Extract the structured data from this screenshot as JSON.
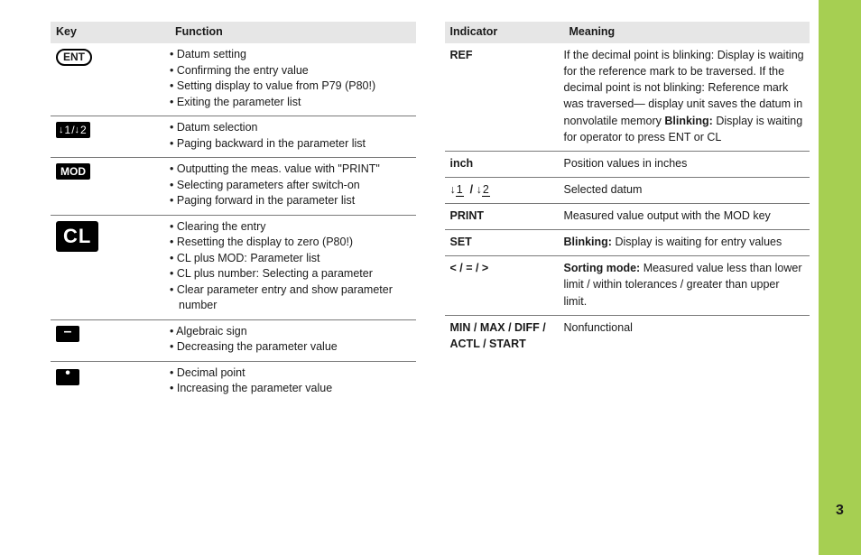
{
  "page_number": "3",
  "left_table": {
    "header": {
      "key": "Key",
      "function": "Function"
    },
    "rows": [
      {
        "key_type": "ent",
        "key_label": "ENT",
        "items": [
          "Datum setting",
          "Confirming the entry value",
          "Setting display to value from P79 (P80!)",
          "Exiting the parameter list"
        ]
      },
      {
        "key_type": "datum12",
        "key_label": "1/2",
        "items": [
          "Datum selection",
          "Paging backward in the parameter list"
        ]
      },
      {
        "key_type": "mod",
        "key_label": "MOD",
        "items": [
          "Outputting the meas. value with \"PRINT\"",
          "Selecting parameters after switch-on",
          "Paging forward in the parameter list"
        ]
      },
      {
        "key_type": "cl",
        "key_label": "CL",
        "items": [
          "Clearing the entry",
          "Resetting the display to zero (P80!)",
          "CL plus MOD: Parameter list",
          "CL plus number: Selecting a parameter",
          "Clear parameter entry and show parameter number"
        ]
      },
      {
        "key_type": "minus",
        "key_label": "–",
        "items": [
          "Algebraic sign",
          "Decreasing the parameter  value"
        ]
      },
      {
        "key_type": "dot",
        "key_label": "•",
        "items": [
          "Decimal point",
          "Increasing the parameter value"
        ]
      }
    ]
  },
  "right_table": {
    "header": {
      "indicator": "Indicator",
      "meaning": "Meaning"
    },
    "rows": [
      {
        "indicator": "REF",
        "meaning_lines": [
          {
            "text": "If the decimal point is blinking:"
          },
          {
            "text": "Display is waiting for the reference mark to be traversed."
          },
          {
            "text": "If the decimal point is not blinking:"
          },
          {
            "text": "Reference mark was traversed—"
          },
          {
            "text": "display unit saves the datum in nonvolatile memory"
          },
          {
            "bold": "Blinking:",
            "text": " Display is waiting for operator to press ENT or CL"
          }
        ]
      },
      {
        "indicator": "inch",
        "meaning_lines": [
          {
            "text": "Position values in inches"
          }
        ]
      },
      {
        "indicator_type": "datum12",
        "indicator": "1  / 2",
        "meaning_lines": [
          {
            "text": "Selected  datum"
          }
        ]
      },
      {
        "indicator": "PRINT",
        "meaning_lines": [
          {
            "text": "Measured value output with the MOD key"
          }
        ]
      },
      {
        "indicator": "SET",
        "meaning_lines": [
          {
            "bold": "Blinking:",
            "text": " Display is waiting for entry values"
          }
        ]
      },
      {
        "indicator": "<  /  =  /  >",
        "meaning_lines": [
          {
            "bold": "Sorting mode:",
            "text": " Measured value less than lower limit / within tolerances / greater than upper limit."
          }
        ]
      },
      {
        "indicator": "MIN / MAX / DIFF / ACTL / START",
        "meaning_lines": [
          {
            "text": "Nonfunctional"
          }
        ]
      }
    ]
  }
}
